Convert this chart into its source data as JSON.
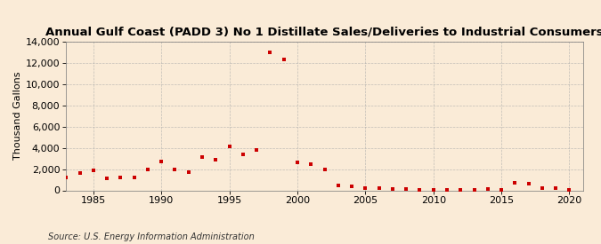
{
  "title": "Annual Gulf Coast (PADD 3) No 1 Distillate Sales/Deliveries to Industrial Consumers",
  "ylabel": "Thousand Gallons",
  "source": "Source: U.S. Energy Information Administration",
  "background_color": "#faebd7",
  "marker_color": "#cc0000",
  "grid_color": "#aaaaaa",
  "xlim": [
    1983,
    2021
  ],
  "ylim": [
    0,
    14000
  ],
  "yticks": [
    0,
    2000,
    4000,
    6000,
    8000,
    10000,
    12000,
    14000
  ],
  "xticks": [
    1985,
    1990,
    1995,
    2000,
    2005,
    2010,
    2015,
    2020
  ],
  "years": [
    1983,
    1984,
    1985,
    1986,
    1987,
    1988,
    1989,
    1990,
    1991,
    1992,
    1993,
    1994,
    1995,
    1996,
    1997,
    1998,
    1999,
    2000,
    2001,
    2002,
    2003,
    2004,
    2005,
    2006,
    2007,
    2008,
    2009,
    2010,
    2011,
    2012,
    2013,
    2014,
    2015,
    2016,
    2017,
    2018,
    2019,
    2020
  ],
  "values": [
    1200,
    1650,
    1900,
    1100,
    1200,
    1200,
    1950,
    2700,
    1950,
    1700,
    3100,
    2900,
    4100,
    3400,
    3800,
    13000,
    12300,
    2600,
    2500,
    2000,
    500,
    350,
    250,
    200,
    150,
    100,
    50,
    30,
    50,
    30,
    50,
    100,
    80,
    700,
    600,
    200,
    200,
    50
  ],
  "title_fontsize": 9.5,
  "tick_fontsize": 8,
  "ylabel_fontsize": 8,
  "source_fontsize": 7
}
